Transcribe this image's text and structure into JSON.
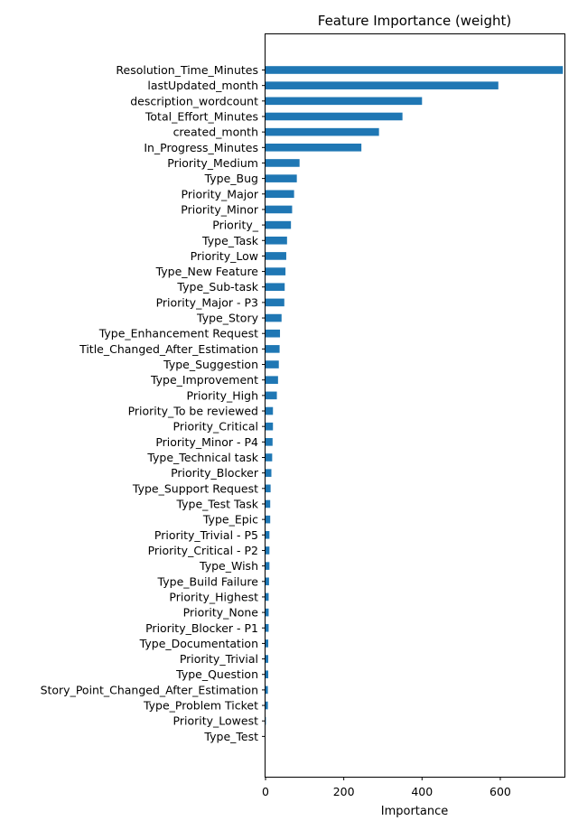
{
  "chart_data": {
    "type": "bar",
    "orientation": "horizontal",
    "title": "Feature Importance (weight)",
    "xlabel": "Importance",
    "ylabel": "",
    "xlim": [
      0,
      800
    ],
    "xticks": [
      0,
      200,
      400,
      600
    ],
    "grid": false,
    "bar_color": "#1f77b4",
    "categories": [
      "Resolution_Time_Minutes",
      "lastUpdated_month",
      "description_wordcount",
      "Total_Effort_Minutes",
      "created_month",
      "In_Progress_Minutes",
      "Priority_Medium",
      "Type_Bug",
      "Priority_Major",
      "Priority_Minor",
      "Priority_",
      "Type_Task",
      "Priority_Low",
      "Type_New Feature",
      "Type_Sub-task",
      "Priority_Major - P3",
      "Type_Story",
      "Type_Enhancement Request",
      "Title_Changed_After_Estimation",
      "Type_Suggestion",
      "Type_Improvement",
      "Priority_High",
      "Priority_To be reviewed",
      "Priority_Critical",
      "Priority_Minor - P4",
      "Type_Technical task",
      "Priority_Blocker",
      "Type_Support Request",
      "Type_Test Task",
      "Type_Epic",
      "Priority_Trivial - P5",
      "Priority_Critical - P2",
      "Type_Wish",
      "Type_Build Failure",
      "Priority_Highest",
      "Priority_None",
      "Priority_Blocker - P1",
      "Type_Documentation",
      "Priority_Trivial",
      "Type_Question",
      "Story_Point_Changed_After_Estimation",
      "Type_Problem Ticket",
      "Priority_Lowest",
      "Type_Test"
    ],
    "values": [
      760,
      595,
      400,
      350,
      290,
      245,
      87,
      80,
      73,
      68,
      65,
      55,
      53,
      51,
      49,
      48,
      41,
      37,
      36,
      34,
      32,
      29,
      19,
      19,
      18,
      17,
      15,
      13,
      12,
      12,
      10,
      10,
      10,
      9,
      8,
      8,
      8,
      7,
      7,
      7,
      6,
      6,
      1,
      0
    ]
  }
}
